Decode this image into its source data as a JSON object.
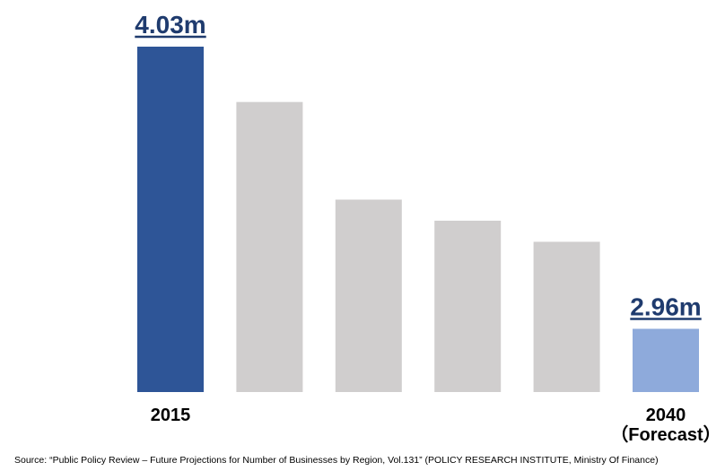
{
  "chart_data": {
    "type": "bar",
    "title": "",
    "xlabel": "",
    "ylabel": "",
    "categories": [
      "2015",
      "",
      "",
      "",
      "",
      "2040"
    ],
    "category_sublabels": [
      "",
      "",
      "",
      "",
      "",
      "（Forecast）"
    ],
    "values": [
      4.03,
      3.82,
      3.45,
      3.37,
      3.29,
      2.96
    ],
    "value_labels": [
      "4.03m",
      "",
      "",
      "",
      "",
      "2.96m"
    ],
    "ylim": [
      2.72,
      4.03
    ],
    "grid": false,
    "legend": "none",
    "colors": [
      "#2e5597",
      "#d0cece",
      "#d0cece",
      "#d0cece",
      "#d0cece",
      "#8eaadb"
    ],
    "value_label_color": "#1f3b6e"
  },
  "source_text": "Source: “Public Policy Review – Future Projections for Number of Businesses by Region, Vol.131” (POLICY RESEARCH INSTITUTE, Ministry Of Finance)"
}
